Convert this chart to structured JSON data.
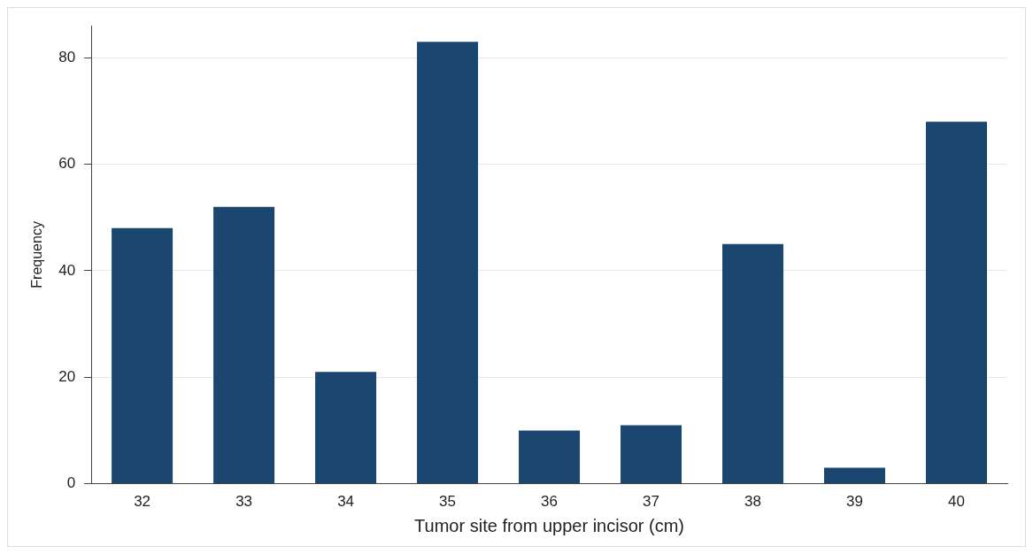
{
  "chart_data": {
    "type": "bar",
    "xlabel": "Tumor site from upper incisor (cm)",
    "ylabel": "Frequency",
    "categories": [
      "32",
      "33",
      "34",
      "35",
      "36",
      "37",
      "38",
      "39",
      "40"
    ],
    "values": [
      48,
      52,
      21,
      83,
      10,
      11,
      45,
      3,
      68
    ],
    "color": "#1a4670",
    "ylim": [
      0,
      86
    ],
    "yticks": [
      0,
      20,
      40,
      60,
      80
    ],
    "grid": "y",
    "legend": false
  }
}
